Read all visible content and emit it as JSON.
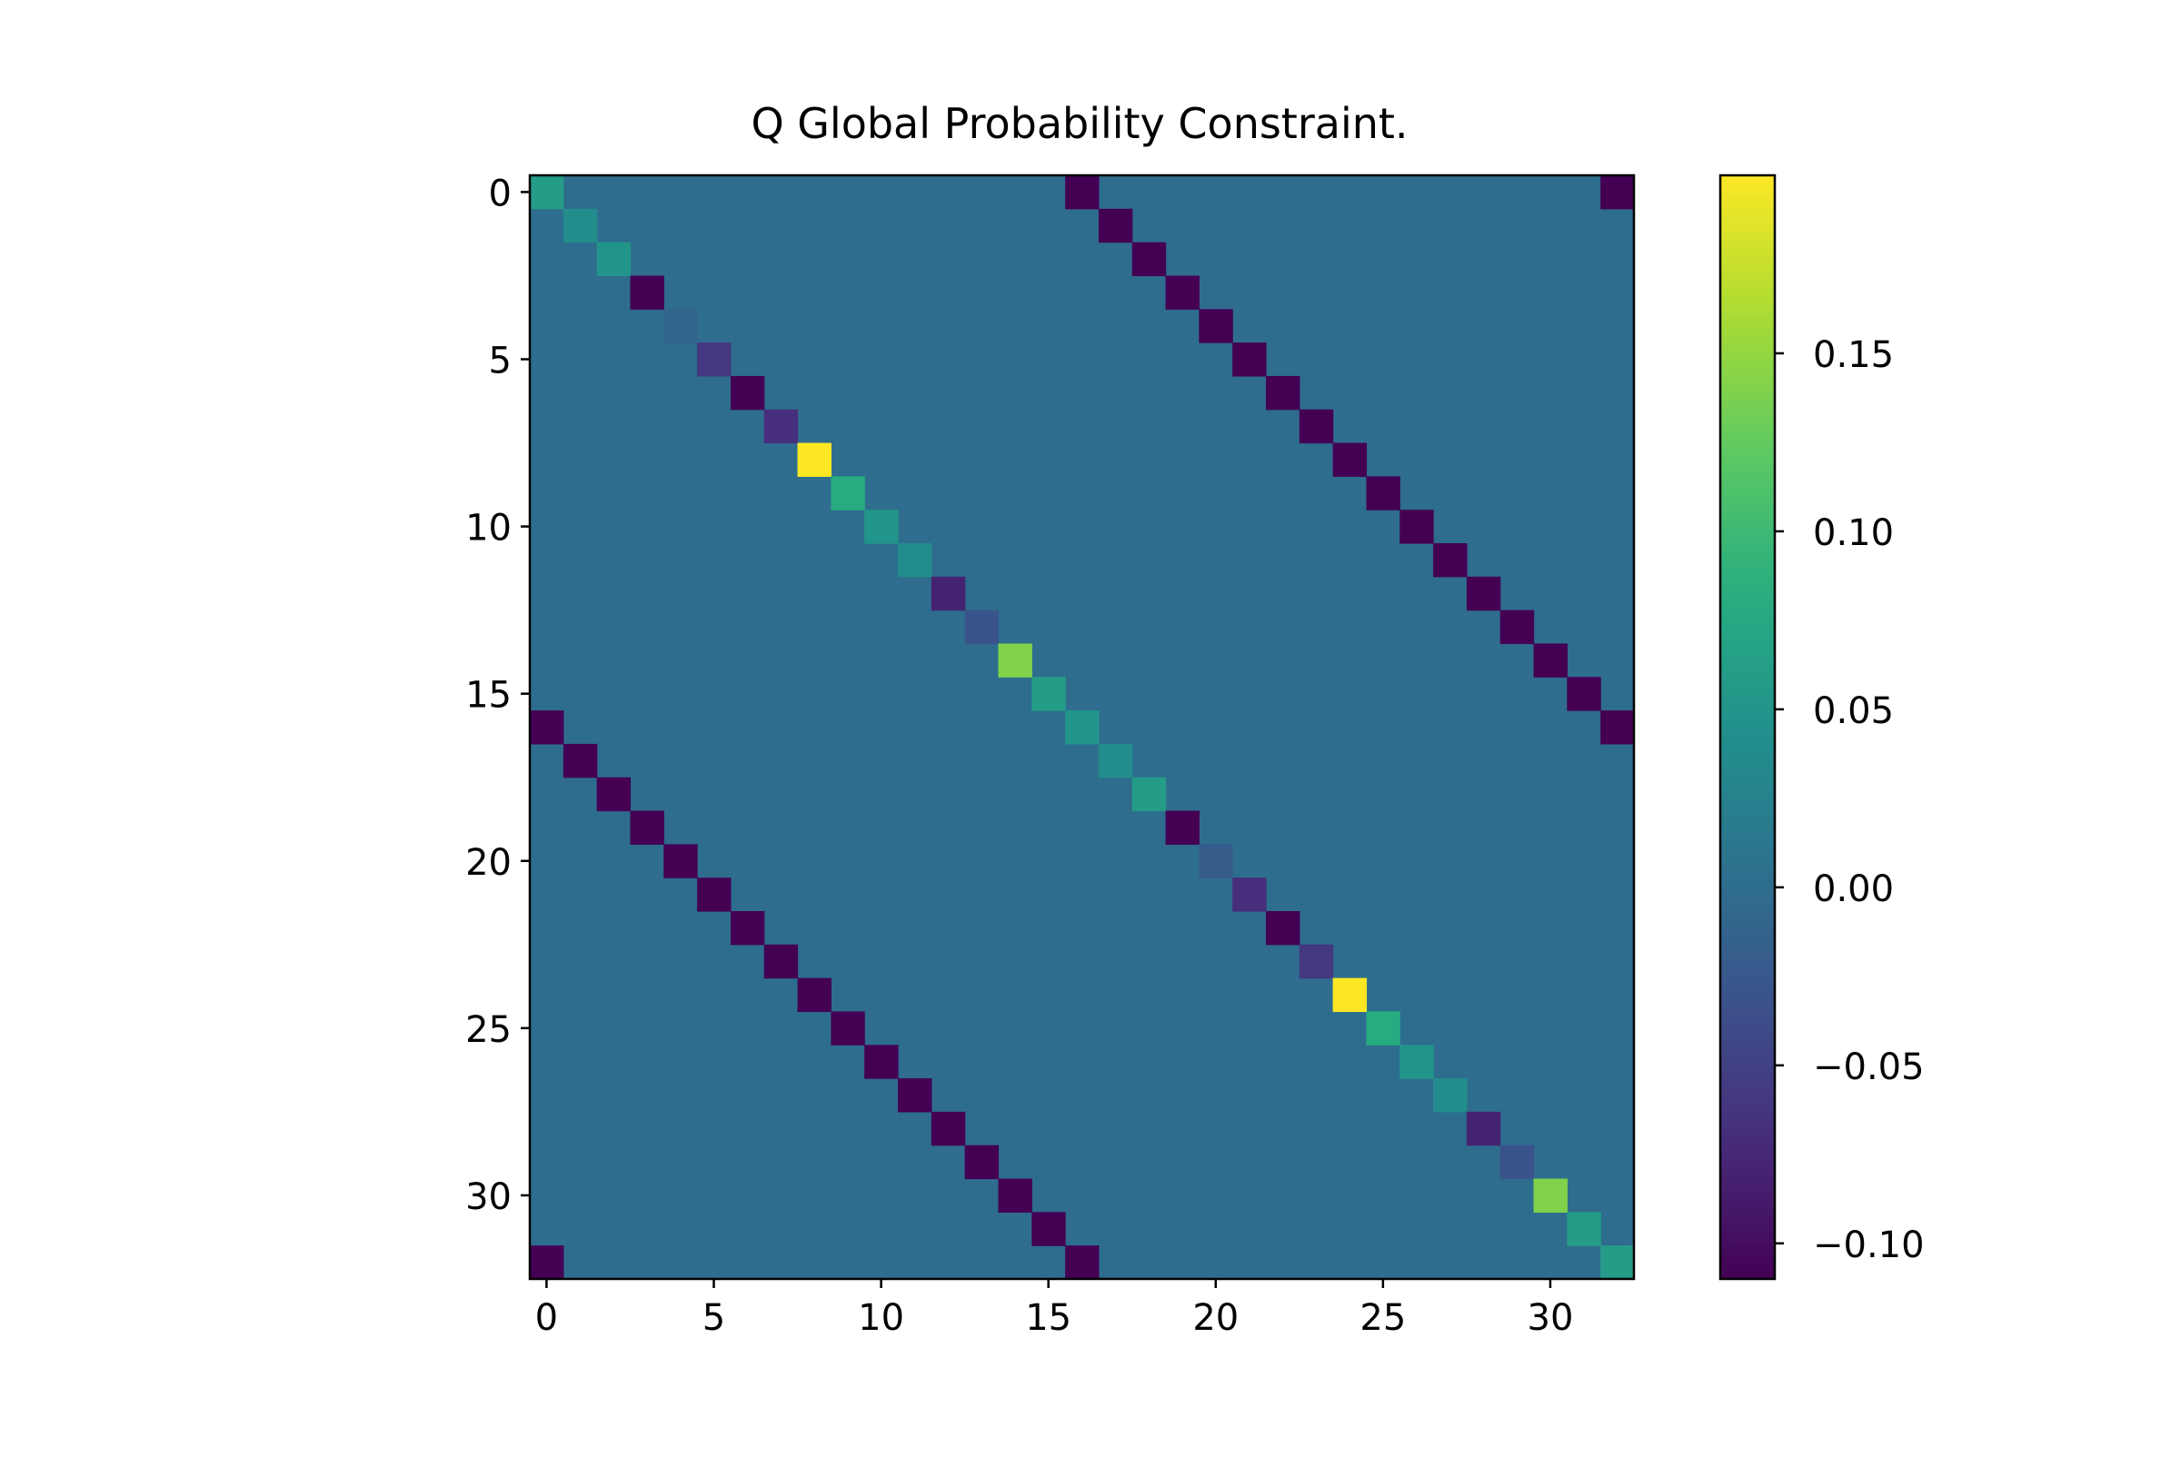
{
  "chart_data": {
    "type": "heatmap",
    "title": "Q Global Probability Constraint.",
    "xlabel": "",
    "ylabel": "",
    "n_rows": 33,
    "n_cols": 33,
    "x_ticks": [
      0,
      5,
      10,
      15,
      20,
      25,
      30
    ],
    "y_ticks": [
      0,
      5,
      10,
      15,
      20,
      25,
      30
    ],
    "x_tick_labels": [
      "0",
      "5",
      "10",
      "15",
      "20",
      "25",
      "30"
    ],
    "y_tick_labels": [
      "0",
      "5",
      "10",
      "15",
      "20",
      "25",
      "30"
    ],
    "background_value": 0.0,
    "diagonal": [
      0.06,
      0.04,
      0.05,
      -0.11,
      -0.01,
      -0.06,
      -0.11,
      -0.07,
      0.2,
      0.08,
      0.05,
      0.04,
      -0.08,
      -0.03,
      0.14,
      0.06,
      0.05,
      0.04,
      0.06,
      -0.11,
      -0.02,
      -0.07,
      -0.11,
      -0.06,
      0.2,
      0.08,
      0.05,
      0.04,
      -0.08,
      -0.03,
      0.14,
      0.06,
      0.06
    ],
    "off_diagonal_offsets": [
      16,
      -16,
      32,
      -32
    ],
    "off_diagonal_value": -0.11,
    "colorbar": {
      "vmin": -0.11,
      "vmax": 0.2,
      "ticks": [
        -0.1,
        -0.05,
        0.0,
        0.05,
        0.1,
        0.15
      ],
      "tick_labels": [
        "−0.10",
        "−0.05",
        "0.00",
        "0.05",
        "0.10",
        "0.15"
      ],
      "colormap": "viridis"
    },
    "grid": false,
    "legend": "none"
  }
}
